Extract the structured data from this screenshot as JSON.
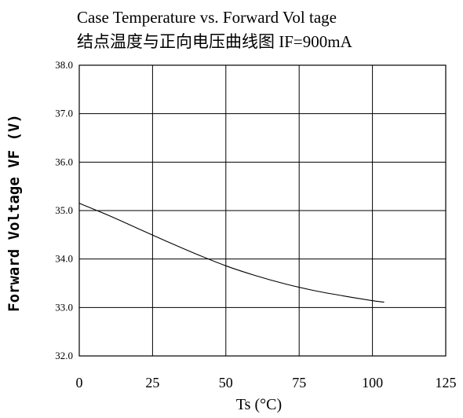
{
  "chart_data": {
    "type": "line",
    "title": "Case Temperature vs. Forward Vol tage",
    "subtitle": "结点温度与正向电压曲线图  IF=900mA",
    "xlabel": "Ts (°C)",
    "ylabel": "Forward Voltage VF (V)",
    "xlim": [
      0,
      125
    ],
    "ylim": [
      32.0,
      38.0
    ],
    "x_ticks": [
      "0",
      "25",
      "50",
      "75",
      "100",
      "125"
    ],
    "y_ticks": [
      "32.0",
      "33.0",
      "34.0",
      "35.0",
      "36.0",
      "37.0",
      "38.0"
    ],
    "grid": true,
    "series": [
      {
        "x": [
          0,
          10,
          20,
          30,
          40,
          50,
          60,
          70,
          80,
          90,
          100,
          104
        ],
        "values": [
          35.15,
          34.9,
          34.63,
          34.36,
          34.1,
          33.86,
          33.66,
          33.49,
          33.35,
          33.24,
          33.14,
          33.11
        ]
      }
    ]
  }
}
